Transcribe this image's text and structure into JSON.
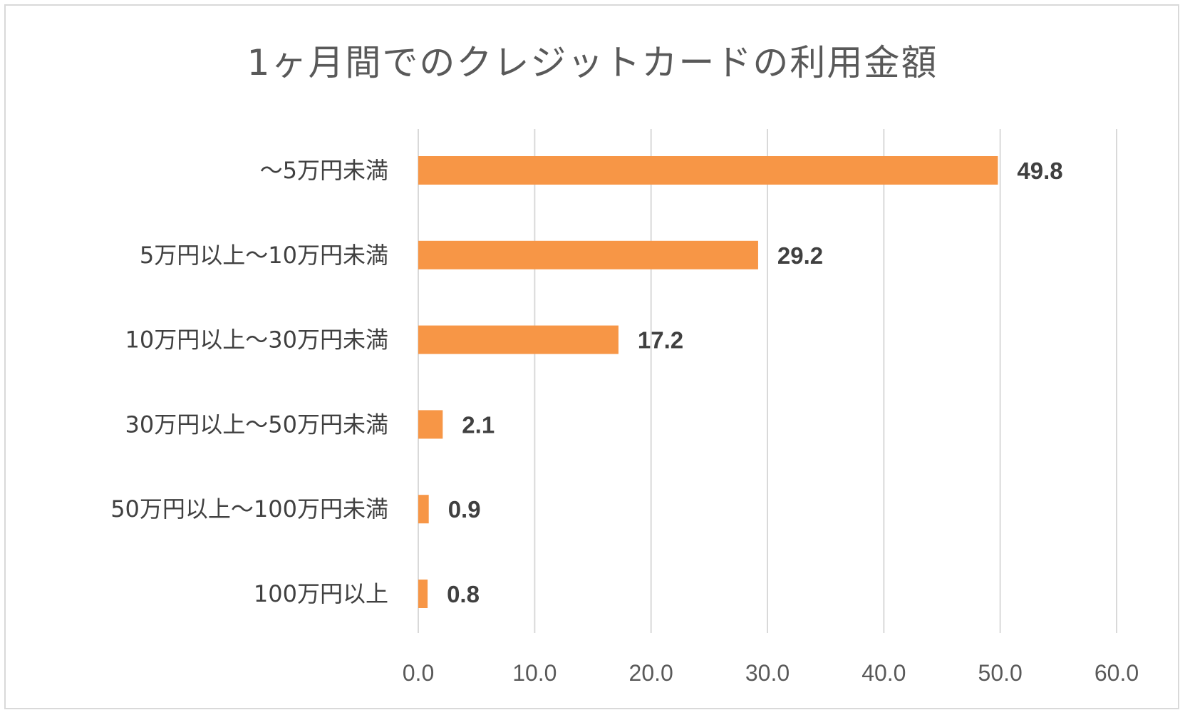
{
  "chart_data": {
    "type": "bar",
    "orientation": "horizontal",
    "title": "1ヶ月間でのクレジットカードの利用金額",
    "categories": [
      "〜5万円未満",
      "5万円以上〜10万円未満",
      "10万円以上〜30万円未満",
      "30万円以上〜50万円未満",
      "50万円以上〜100万円未満",
      "100万円以上"
    ],
    "values": [
      49.8,
      29.2,
      17.2,
      2.1,
      0.9,
      0.8
    ],
    "value_labels": [
      "49.8",
      "29.2",
      "17.2",
      "2.1",
      "0.9",
      "0.8"
    ],
    "xlim": [
      0,
      60
    ],
    "xticks": [
      "0.0",
      "10.0",
      "20.0",
      "30.0",
      "40.0",
      "50.0",
      "60.0"
    ],
    "xlabel": "",
    "ylabel": "",
    "grid": true,
    "bar_color": "#F79646"
  }
}
